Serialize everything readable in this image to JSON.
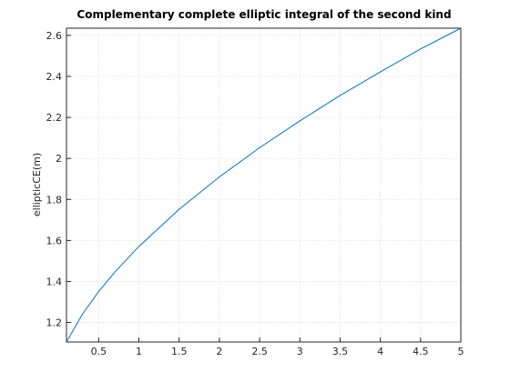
{
  "chart_data": {
    "type": "line",
    "title": "Complementary complete elliptic integral of the second kind",
    "y_label": "ellipticCE(m)",
    "x": [
      0.1,
      0.3,
      0.5,
      0.7,
      1,
      1.5,
      2,
      2.5,
      3,
      3.5,
      4,
      4.5,
      5
    ],
    "series": [
      {
        "color": "#0072bd",
        "values": [
          1.1048,
          1.2417,
          1.3506,
          1.4454,
          1.5708,
          1.7518,
          1.9101,
          2.0524,
          2.183,
          2.307,
          2.4221,
          2.534,
          2.6352
        ]
      }
    ],
    "xlim": [
      0.1,
      5
    ],
    "ylim": [
      1.1048,
      2.6352
    ],
    "xticks": [
      0.5,
      1,
      1.5,
      2,
      2.5,
      3,
      3.5,
      4,
      4.5,
      5
    ],
    "yticks": [
      1.2,
      1.4,
      1.6,
      1.8,
      2,
      2.2,
      2.4,
      2.6
    ],
    "grid": true
  }
}
